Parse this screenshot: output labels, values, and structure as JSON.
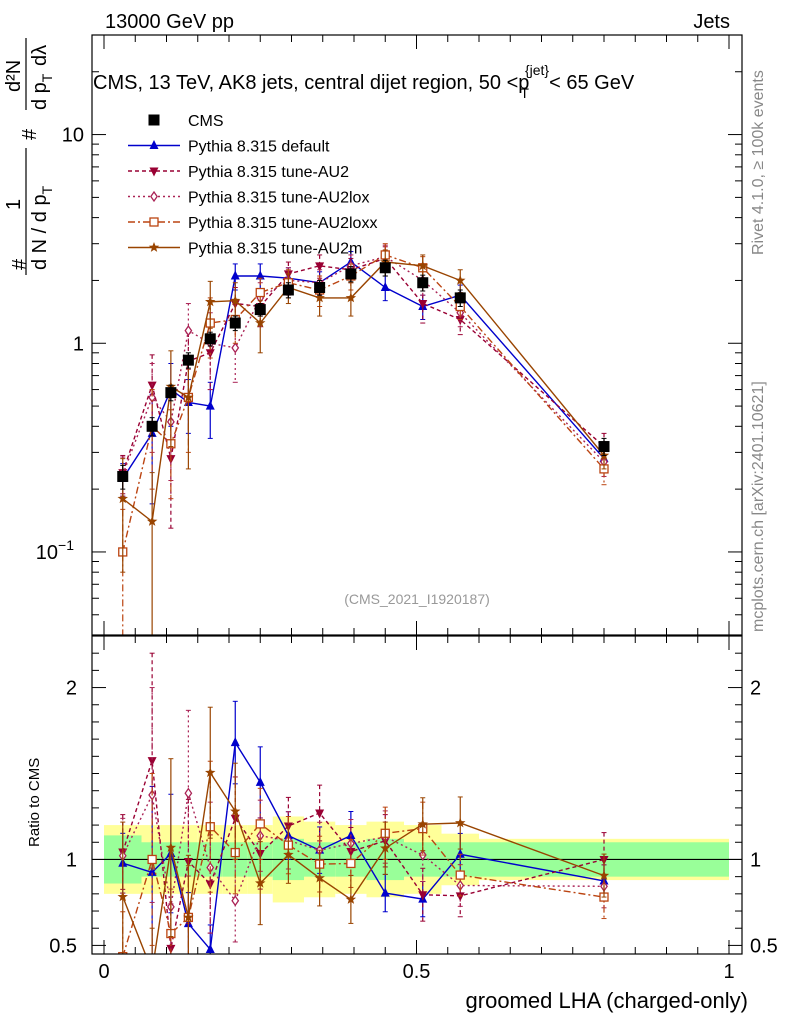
{
  "header": {
    "left": "13000 GeV pp",
    "right": "Jets",
    "side_rivet": "Rivet 4.1.0, ≥ 100k events",
    "side_mcplots": "mcplots.cern.ch [arXiv:2401.10621]"
  },
  "chart_data": {
    "type": "line",
    "title": "CMS, 13 TeV, AK8 jets, central dijet region, 50 < p_T^{jet} < 65 GeV",
    "title_parts": {
      "main": "CMS, 13 TeV, AK8 jets, central dijet region, 50 <",
      "p": "p",
      "sub": "T",
      "sup": "{jet}",
      "tail": "< 65 GeV"
    },
    "analysis_id": "(CMS_2021_I1920187)",
    "xlabel": "groomed LHA (charged-only)",
    "ylabel_parts": {
      "one": "1",
      "dN": "d N / d p",
      "dN_sub": "T",
      "hash": "#",
      "hash2": "#",
      "d2N": "d²N",
      "dpT": "d p",
      "dpT_sub": "T",
      "dlambda": "dλ"
    },
    "ratio_ylabel": "Ratio to CMS",
    "xlim": [
      0,
      1
    ],
    "ylim": [
      0.04,
      30
    ],
    "yscale": "log",
    "ratio_ylim": [
      0.45,
      2.3
    ],
    "x_tick_labels": [
      "0",
      "0.5",
      "1"
    ],
    "x_tick_values": [
      0,
      0.5,
      1
    ],
    "y_tick_labels": [
      {
        "value": 0.1,
        "base": "10",
        "exp": "−1"
      },
      {
        "value": 1,
        "base": "1",
        "exp": ""
      },
      {
        "value": 10,
        "base": "10",
        "exp": ""
      }
    ],
    "ratio_tick_labels": [
      {
        "value": 0.5,
        "label": "0.5"
      },
      {
        "value": 1,
        "label": "1"
      },
      {
        "value": 2,
        "label": "2"
      }
    ],
    "x": [
      0.03,
      0.077,
      0.107,
      0.135,
      0.17,
      0.21,
      0.25,
      0.295,
      0.345,
      0.395,
      0.45,
      0.51,
      0.57,
      0.8
    ],
    "bin_edges": [
      0,
      0.06,
      0.09,
      0.12,
      0.15,
      0.19,
      0.23,
      0.27,
      0.32,
      0.37,
      0.42,
      0.48,
      0.54,
      0.6,
      1.0
    ],
    "band_green_halfwidth": [
      0.14,
      0.1,
      0.1,
      0.1,
      0.1,
      0.1,
      0.1,
      0.12,
      0.1,
      0.1,
      0.12,
      0.1,
      0.1,
      0.1
    ],
    "band_yellow_halfwidth": [
      0.2,
      0.2,
      0.2,
      0.2,
      0.2,
      0.2,
      0.2,
      0.25,
      0.22,
      0.2,
      0.22,
      0.2,
      0.15,
      0.12
    ],
    "series": [
      {
        "name": "CMS",
        "color": "#000000",
        "marker": "square-filled",
        "dash": "",
        "y": [
          0.23,
          0.4,
          0.58,
          0.83,
          1.05,
          1.25,
          1.45,
          1.8,
          1.85,
          2.15,
          2.3,
          1.95,
          1.65,
          0.32
        ],
        "err": [
          0.03,
          0.04,
          0.05,
          0.07,
          0.08,
          0.1,
          0.1,
          0.15,
          0.15,
          0.18,
          0.2,
          0.17,
          0.15,
          0.03
        ]
      },
      {
        "name": "Pythia 8.315 default",
        "color": "#0000cc",
        "marker": "triangle-up-filled",
        "dash": "",
        "y": [
          0.225,
          0.37,
          0.6,
          0.52,
          0.5,
          2.1,
          2.1,
          2.05,
          1.95,
          2.45,
          1.85,
          1.5,
          1.7,
          0.28
        ],
        "err": [
          0.04,
          0.2,
          0.2,
          0.15,
          0.15,
          0.3,
          0.3,
          0.25,
          0.25,
          0.3,
          0.25,
          0.2,
          0.2,
          0.03
        ]
      },
      {
        "name": "Pythia 8.315 tune-AU2",
        "color": "#990033",
        "marker": "triangle-down-filled",
        "dash": "4 3",
        "y": [
          0.24,
          0.63,
          0.28,
          0.82,
          0.9,
          1.55,
          1.5,
          2.15,
          2.35,
          2.25,
          2.55,
          1.55,
          1.3,
          0.32
        ],
        "err": [
          0.05,
          0.25,
          0.15,
          0.3,
          0.3,
          0.3,
          0.3,
          0.3,
          0.3,
          0.3,
          0.35,
          0.3,
          0.2,
          0.05
        ]
      },
      {
        "name": "Pythia 8.315 tune-AU2lox",
        "color": "#aa2255",
        "marker": "diamond-open",
        "dash": "2 3",
        "y": [
          0.235,
          0.55,
          0.42,
          1.15,
          1.0,
          0.95,
          1.65,
          2.0,
          1.95,
          2.35,
          2.6,
          2.0,
          1.4,
          0.27
        ],
        "err": [
          0.05,
          0.25,
          0.2,
          0.4,
          0.4,
          0.3,
          0.3,
          0.3,
          0.3,
          0.3,
          0.35,
          0.3,
          0.2,
          0.04
        ]
      },
      {
        "name": "Pythia 8.315 tune-AU2loxx",
        "color": "#bb4411",
        "marker": "square-open",
        "dash": "7 3 2 3",
        "y": [
          0.1,
          0.4,
          0.33,
          0.55,
          1.25,
          1.3,
          1.75,
          1.95,
          1.8,
          2.1,
          2.65,
          2.3,
          1.5,
          0.25
        ],
        "err": [
          0.06,
          0.2,
          0.15,
          0.25,
          0.4,
          0.3,
          0.3,
          0.3,
          0.3,
          0.3,
          0.35,
          0.3,
          0.2,
          0.04
        ]
      },
      {
        "name": "Pythia 8.315 tune-AU2m",
        "color": "#994400",
        "marker": "star",
        "dash": "",
        "y": [
          0.18,
          0.14,
          0.62,
          0.55,
          1.58,
          1.6,
          1.25,
          1.85,
          1.65,
          1.65,
          2.45,
          2.35,
          2.0,
          0.29
        ],
        "err": [
          0.1,
          0.1,
          0.3,
          0.3,
          0.4,
          0.35,
          0.35,
          0.3,
          0.3,
          0.3,
          0.35,
          0.3,
          0.25,
          0.04
        ]
      }
    ]
  }
}
